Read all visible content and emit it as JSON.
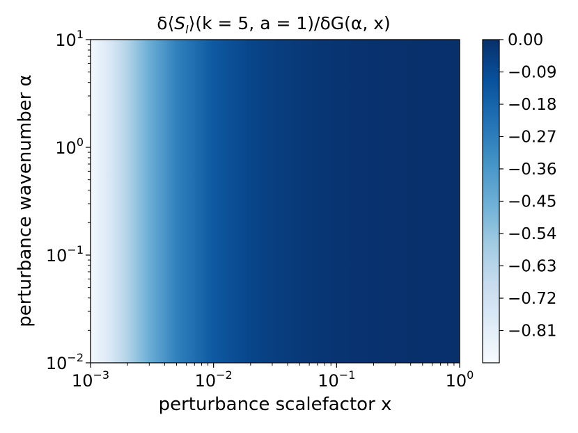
{
  "chart_data": {
    "type": "heatmap",
    "title": "δ⟨S_l⟩(k = 5, a = 1)/δG(α, x)",
    "xlabel": "perturbance scalefactor x",
    "ylabel": "perturbance wavenumber α",
    "x_scale": "log",
    "y_scale": "log",
    "xlim": [
      0.001,
      1
    ],
    "ylim": [
      0.01,
      10
    ],
    "x_ticks": [
      {
        "value": 0.001,
        "base": "10",
        "exp": "−3"
      },
      {
        "value": 0.01,
        "base": "10",
        "exp": "−2"
      },
      {
        "value": 0.1,
        "base": "10",
        "exp": "−1"
      },
      {
        "value": 1,
        "base": "10",
        "exp": "0"
      }
    ],
    "y_ticks": [
      {
        "value": 0.01,
        "base": "10",
        "exp": "−2"
      },
      {
        "value": 0.1,
        "base": "10",
        "exp": "−1"
      },
      {
        "value": 1,
        "base": "10",
        "exp": "0"
      },
      {
        "value": 10,
        "base": "10",
        "exp": "1"
      }
    ],
    "colormap": "Blues_r",
    "color_range": [
      -0.9,
      0.0
    ],
    "colorbar_ticks": [
      "0.00",
      "−0.09",
      "−0.18",
      "−0.27",
      "−0.36",
      "−0.45",
      "−0.54",
      "−0.63",
      "−0.72",
      "−0.81"
    ],
    "colorbar_tick_values": [
      0.0,
      -0.09,
      -0.18,
      -0.27,
      -0.36,
      -0.45,
      -0.54,
      -0.63,
      -0.72,
      -0.81
    ],
    "profile_along_x": {
      "note_free": true,
      "x": [
        0.001,
        0.0015,
        0.002,
        0.003,
        0.005,
        0.01,
        0.02,
        0.05,
        0.1,
        0.3,
        1
      ],
      "value": [
        -0.88,
        -0.75,
        -0.62,
        -0.45,
        -0.28,
        -0.14,
        -0.07,
        -0.03,
        -0.015,
        -0.005,
        0.0
      ]
    },
    "colors": {
      "cmap_light": "#f7fbff",
      "cmap_dark": "#08306b"
    }
  }
}
